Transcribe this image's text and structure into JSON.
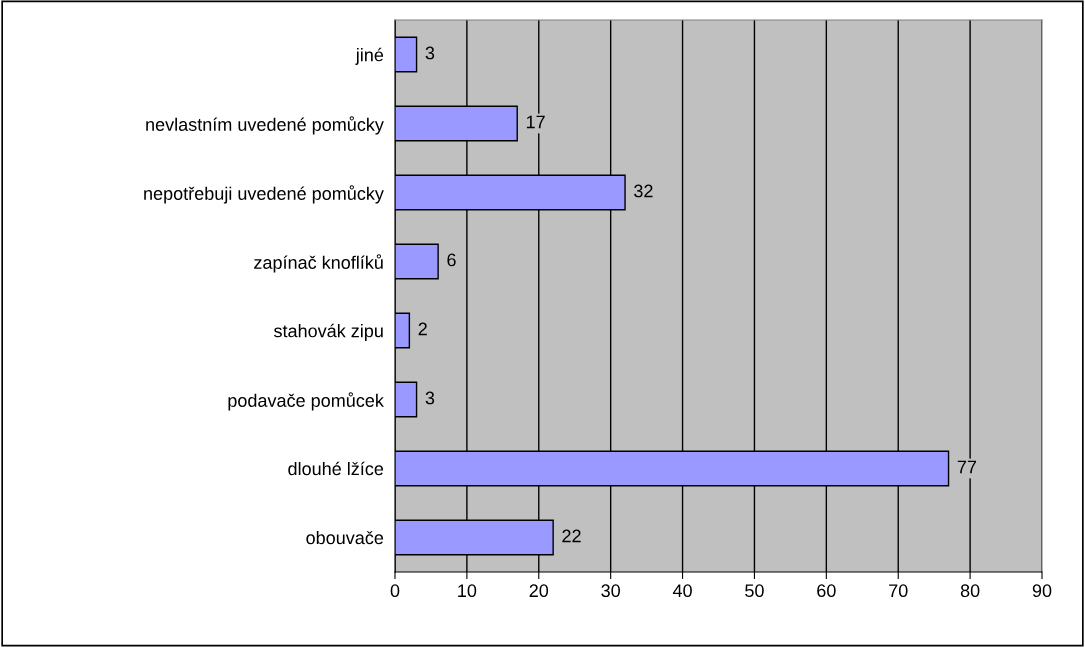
{
  "chart_data": {
    "type": "bar",
    "orientation": "horizontal",
    "categories": [
      "jiné",
      "nevlastním uvedené pomůcky",
      "nepotřebuji uvedené pomůcky",
      "zapínač knoflíků",
      "stahovák zipu",
      "podavače pomůcek",
      "dlouhé lžíce",
      "obouvače"
    ],
    "values": [
      3,
      17,
      32,
      6,
      2,
      3,
      77,
      22
    ],
    "color": "#9999ff",
    "xlim": [
      0,
      90
    ],
    "xticks": [
      0,
      10,
      20,
      30,
      40,
      50,
      60,
      70,
      80,
      90
    ],
    "grid": "x",
    "data_labels": true
  }
}
